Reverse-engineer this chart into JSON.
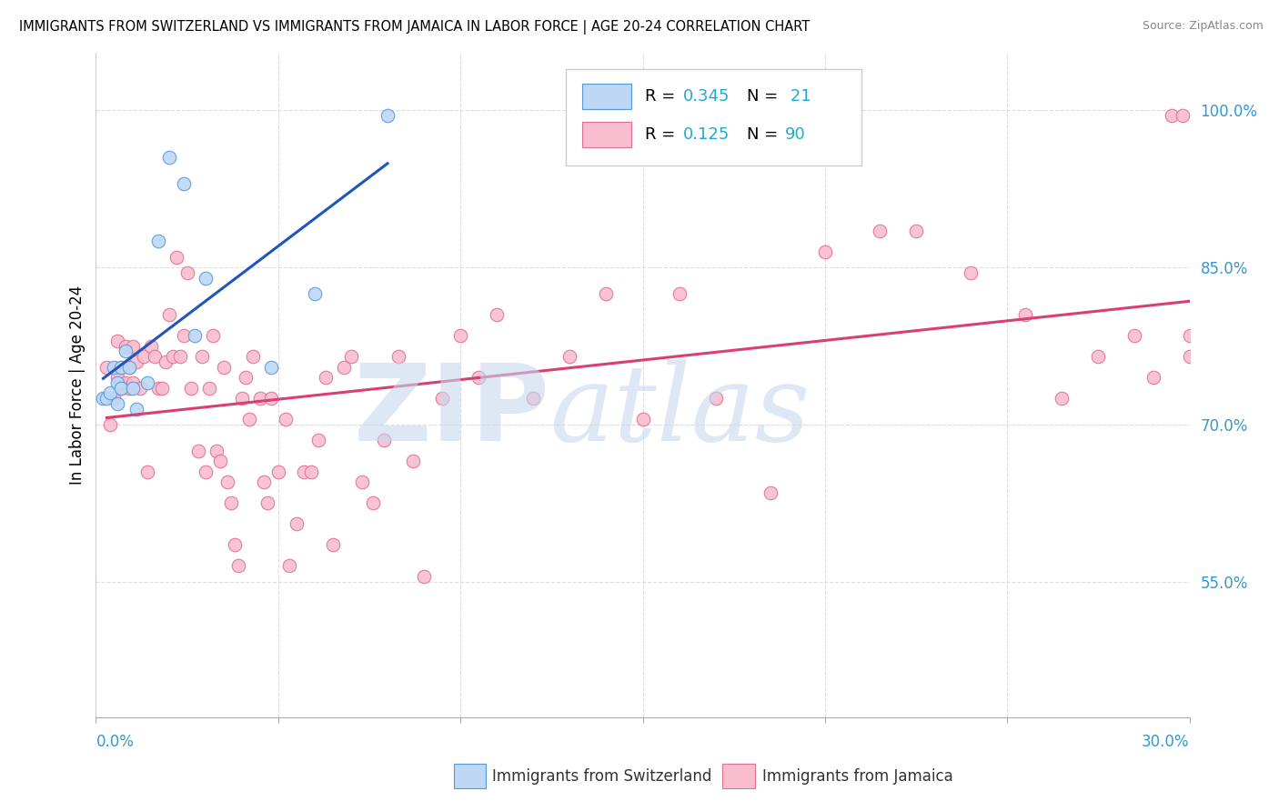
{
  "title": "IMMIGRANTS FROM SWITZERLAND VS IMMIGRANTS FROM JAMAICA IN LABOR FORCE | AGE 20-24 CORRELATION CHART",
  "source": "Source: ZipAtlas.com",
  "ylabel": "In Labor Force | Age 20-24",
  "watermark": "ZIPatlas",
  "legend_r_sw": "0.345",
  "legend_n_sw": " 21",
  "legend_r_jm": "0.125",
  "legend_n_jm": "90",
  "color_sw_fill": "#BDD7F5",
  "color_sw_edge": "#5599DD",
  "color_jm_fill": "#F9BDD0",
  "color_jm_edge": "#E07090",
  "color_trendline_sw": "#2255BB",
  "color_trendline_jm": "#D94070",
  "color_watermark": "#C8D8EE",
  "xlim": [
    0.0,
    0.3
  ],
  "ylim": [
    0.42,
    1.055
  ],
  "yticks": [
    0.55,
    0.7,
    0.85,
    1.0
  ],
  "ytick_labels": [
    "55.0%",
    "70.0%",
    "85.0%",
    "100.0%"
  ],
  "sw_x": [
    0.002,
    0.003,
    0.004,
    0.005,
    0.006,
    0.006,
    0.007,
    0.007,
    0.008,
    0.009,
    0.01,
    0.011,
    0.014,
    0.017,
    0.02,
    0.024,
    0.027,
    0.03,
    0.048,
    0.06,
    0.08
  ],
  "sw_y": [
    0.725,
    0.725,
    0.73,
    0.755,
    0.74,
    0.72,
    0.755,
    0.735,
    0.77,
    0.755,
    0.735,
    0.715,
    0.74,
    0.875,
    0.955,
    0.93,
    0.785,
    0.84,
    0.755,
    0.825,
    0.995
  ],
  "jm_x": [
    0.003,
    0.004,
    0.005,
    0.006,
    0.006,
    0.007,
    0.007,
    0.008,
    0.008,
    0.009,
    0.009,
    0.01,
    0.01,
    0.011,
    0.012,
    0.013,
    0.014,
    0.015,
    0.016,
    0.017,
    0.018,
    0.019,
    0.02,
    0.021,
    0.022,
    0.023,
    0.024,
    0.025,
    0.026,
    0.028,
    0.029,
    0.03,
    0.031,
    0.032,
    0.033,
    0.034,
    0.035,
    0.036,
    0.037,
    0.038,
    0.039,
    0.04,
    0.041,
    0.042,
    0.043,
    0.045,
    0.046,
    0.047,
    0.048,
    0.05,
    0.052,
    0.053,
    0.055,
    0.057,
    0.059,
    0.061,
    0.063,
    0.065,
    0.068,
    0.07,
    0.073,
    0.076,
    0.079,
    0.083,
    0.087,
    0.09,
    0.095,
    0.1,
    0.105,
    0.11,
    0.12,
    0.13,
    0.14,
    0.15,
    0.16,
    0.17,
    0.185,
    0.2,
    0.215,
    0.225,
    0.24,
    0.255,
    0.265,
    0.275,
    0.285,
    0.29,
    0.295,
    0.298,
    0.3,
    0.3
  ],
  "jm_y": [
    0.755,
    0.7,
    0.725,
    0.78,
    0.745,
    0.755,
    0.735,
    0.775,
    0.74,
    0.755,
    0.735,
    0.775,
    0.74,
    0.76,
    0.735,
    0.765,
    0.655,
    0.775,
    0.765,
    0.735,
    0.735,
    0.76,
    0.805,
    0.765,
    0.86,
    0.765,
    0.785,
    0.845,
    0.735,
    0.675,
    0.765,
    0.655,
    0.735,
    0.785,
    0.675,
    0.665,
    0.755,
    0.645,
    0.625,
    0.585,
    0.565,
    0.725,
    0.745,
    0.705,
    0.765,
    0.725,
    0.645,
    0.625,
    0.725,
    0.655,
    0.705,
    0.565,
    0.605,
    0.655,
    0.655,
    0.685,
    0.745,
    0.585,
    0.755,
    0.765,
    0.645,
    0.625,
    0.685,
    0.765,
    0.665,
    0.555,
    0.725,
    0.785,
    0.745,
    0.805,
    0.725,
    0.765,
    0.825,
    0.705,
    0.825,
    0.725,
    0.635,
    0.865,
    0.885,
    0.885,
    0.845,
    0.805,
    0.725,
    0.765,
    0.785,
    0.745,
    0.995,
    0.995,
    0.785,
    0.765
  ]
}
